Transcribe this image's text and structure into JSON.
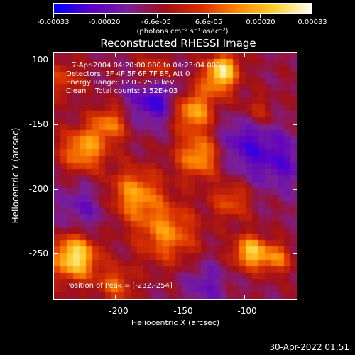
{
  "colorbar": {
    "tick_labels": [
      "-0.00033",
      "-0.00020",
      "-6.6e-05",
      "6.6e-05",
      "0.00020",
      "0.00033"
    ],
    "units": "(photons cm⁻² s⁻¹ asec⁻²)",
    "range": [
      -0.00033,
      0.00033
    ],
    "colors": [
      "#0000ff",
      "#5b00c8",
      "#7a1f9a",
      "#a01018",
      "#d83000",
      "#ff8a00",
      "#ffd030",
      "#fffff0"
    ]
  },
  "title": "Reconstructed RHESSI Image",
  "annotations": {
    "time_range": "7-Apr-2004 04:20:00.000 to 04:23:04.000",
    "detectors": "Detectors: 3F 4F 5F 6F 7F 8F, Att 0",
    "energy": "Energy Range: 12.0 - 25.0 keV",
    "method": "Clean    Total counts: 1.52E+03",
    "peak": "Position of Peak = [-232,-254]"
  },
  "chart_data": {
    "type": "heatmap",
    "title": "Reconstructed RHESSI Image",
    "xlabel": "Heliocentric X (arcsec)",
    "ylabel": "Heliocentric Y (arcsec)",
    "xlim": [
      -248,
      -59
    ],
    "ylim": [
      -286,
      -94
    ],
    "xticks": [
      -200,
      -150,
      -100
    ],
    "xtick_labels": [
      "-200",
      "-150",
      "-100"
    ],
    "yticks": [
      -100,
      -150,
      -200,
      -250
    ],
    "ytick_labels": [
      "-100",
      "-150",
      "-200",
      "-250"
    ],
    "zrange": [
      -0.00033,
      0.00033
    ],
    "colormap": [
      "#0000ff",
      "#5b00c8",
      "#7a1f9a",
      "#a01018",
      "#d83000",
      "#ff8a00",
      "#ffd030",
      "#fffff0"
    ],
    "grid_size": [
      38,
      38
    ],
    "blobs": [
      {
        "x": -232,
        "y": -254,
        "amp": 1.0,
        "sigma": 12
      },
      {
        "x": -225,
        "y": -170,
        "amp": 0.7,
        "sigma": 12
      },
      {
        "x": -205,
        "y": -150,
        "amp": 0.55,
        "sigma": 10
      },
      {
        "x": -185,
        "y": -205,
        "amp": 0.65,
        "sigma": 14
      },
      {
        "x": -160,
        "y": -235,
        "amp": 0.6,
        "sigma": 16
      },
      {
        "x": -170,
        "y": -110,
        "amp": 0.45,
        "sigma": 10
      },
      {
        "x": -140,
        "y": -140,
        "amp": 0.75,
        "sigma": 11
      },
      {
        "x": -135,
        "y": -175,
        "amp": 0.7,
        "sigma": 12
      },
      {
        "x": -120,
        "y": -115,
        "amp": 0.65,
        "sigma": 10
      },
      {
        "x": -115,
        "y": -105,
        "amp": 0.55,
        "sigma": 8
      },
      {
        "x": -110,
        "y": -210,
        "amp": 0.45,
        "sigma": 10
      },
      {
        "x": -95,
        "y": -250,
        "amp": 0.85,
        "sigma": 9
      },
      {
        "x": -75,
        "y": -255,
        "amp": 0.55,
        "sigma": 8
      },
      {
        "x": -90,
        "y": -140,
        "amp": 0.3,
        "sigma": 9
      },
      {
        "x": -240,
        "y": -115,
        "amp": 0.35,
        "sigma": 10
      },
      {
        "x": -200,
        "y": -275,
        "amp": 0.45,
        "sigma": 10
      },
      {
        "x": -170,
        "y": -130,
        "amp": -0.55,
        "sigma": 14
      },
      {
        "x": -100,
        "y": -165,
        "amp": -0.4,
        "sigma": 16
      },
      {
        "x": -70,
        "y": -180,
        "amp": -0.35,
        "sigma": 16
      },
      {
        "x": -225,
        "y": -215,
        "amp": -0.3,
        "sigma": 14
      },
      {
        "x": -130,
        "y": -275,
        "amp": -0.3,
        "sigma": 12
      }
    ]
  },
  "timestamp": "30-Apr-2022 01:51"
}
